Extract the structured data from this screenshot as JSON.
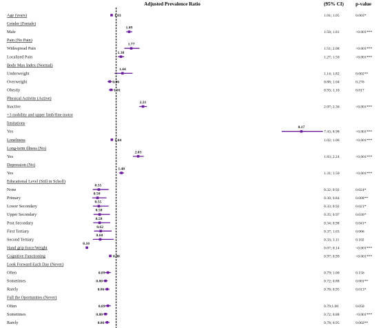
{
  "chart_data": {
    "type": "forest",
    "title": "Adjusted Prevalence Ratio",
    "ci_header": "(95% CI)",
    "p_header": "p-value",
    "x_ticks": [
      "0.15",
      "1.20",
      "2.25",
      "3.30",
      "4.35",
      "5.40",
      "6.45",
      "7.50",
      "8.55"
    ],
    "xlim": [
      0.15,
      8.55
    ],
    "reference_line": 1.2,
    "marker_color": "#6a1b9a",
    "rows": [
      {
        "label": "Age (years)",
        "header": true,
        "pr": 1.03,
        "pr_label": "1.03",
        "lo": 1.01,
        "hi": 1.05,
        "ci": "1.01; 1.05",
        "p": "0.003*"
      },
      {
        "label": "Gender (Female)",
        "header": true
      },
      {
        "label": "Male",
        "pr": 1.69,
        "pr_label": "1.69",
        "lo": 1.58,
        "hi": 1.81,
        "ci": "1.58; 1.81",
        "p": "<0.001***"
      },
      {
        "label": "Pain (No Pain)",
        "header": true
      },
      {
        "label": "Widespread Pain",
        "pr": 1.77,
        "pr_label": "1.77",
        "lo": 1.51,
        "hi": 2.08,
        "ci": "1.51; 2.08",
        "p": "<0.001***"
      },
      {
        "label": "Localized Pain",
        "pr": 1.38,
        "pr_label": "1.38",
        "lo": 1.27,
        "hi": 1.5,
        "ci": "1.27; 1.50",
        "p": "<0.001***"
      },
      {
        "label": "Body Max Index (Normal)",
        "header": true
      },
      {
        "label": "Underweight",
        "pr": 1.44,
        "pr_label": "1.44",
        "lo": 1.14,
        "hi": 1.82,
        "ci": "1.14; 1.82",
        "p": "0.002**"
      },
      {
        "label": "Overweight",
        "pr": 0.96,
        "pr_label": "0.96",
        "lo": 0.88,
        "hi": 1.04,
        "ci": "0.88; 1.04",
        "p": "0.276"
      },
      {
        "label": "Obesity",
        "pr": 1.01,
        "pr_label": "1.01",
        "lo": 0.93,
        "hi": 1.1,
        "ci": "0.93; 1.10",
        "p": "0.817"
      },
      {
        "label": "Physical Activity (Active)",
        "header": true
      },
      {
        "label": "Inactive",
        "pr": 2.21,
        "pr_label": "2.21",
        "lo": 2.07,
        "hi": 2.36,
        "ci": "2.07; 2.36",
        "p": "<0.001***"
      },
      {
        "label": "+3 mobility and upper limb/fine motor",
        "header": true
      },
      {
        "label": "limitations",
        "header": true
      },
      {
        "label": "Yes",
        "pr": 8.17,
        "pr_label": "8.17",
        "lo": 7.43,
        "hi": 8.98,
        "ci": "7.43; 8.98",
        "p": "<0.001***"
      },
      {
        "label": "Loneliness",
        "header": true,
        "pr": 1.04,
        "pr_label": "1.04",
        "lo": 1.02,
        "hi": 1.06,
        "ci": "1.02; 1.06",
        "p": "<0.001***"
      },
      {
        "label": "Long-term illness (No)",
        "header": true
      },
      {
        "label": "Yes",
        "pr": 2.03,
        "pr_label": "2.03",
        "lo": 1.83,
        "hi": 2.24,
        "ci": "1.83; 2.24",
        "p": "<0.001***"
      },
      {
        "label": "Depression (No)",
        "header": true
      },
      {
        "label": "Yes",
        "pr": 1.4,
        "pr_label": "1.40",
        "lo": 1.31,
        "hi": 1.5,
        "ci": "1.31; 1.50",
        "p": "<0.001***"
      },
      {
        "label": "Educational Level (Still in Scholl)",
        "header": true
      },
      {
        "label": "None",
        "pr": 0.55,
        "pr_label": "0.55",
        "lo": 0.32,
        "hi": 0.92,
        "ci": "0.32; 0.92",
        "p": "0.024*"
      },
      {
        "label": "Primary",
        "pr": 0.5,
        "pr_label": "0.50",
        "lo": 0.3,
        "hi": 0.84,
        "ci": "0.30; 0.84",
        "p": "0.008**"
      },
      {
        "label": "Lower Secondary",
        "pr": 0.55,
        "pr_label": "0.55",
        "lo": 0.33,
        "hi": 0.92,
        "ci": "0.33; 0.92",
        "p": "0.021*"
      },
      {
        "label": "Upper Secondary",
        "pr": 0.58,
        "pr_label": "0.58",
        "lo": 0.35,
        "hi": 0.97,
        "ci": "0.35; 0.97",
        "p": "0.036*"
      },
      {
        "label": "Post Secondary",
        "pr": 0.58,
        "pr_label": "0.58",
        "lo": 0.34,
        "hi": 0.98,
        "ci": "0.34; 0.98",
        "p": "0.041*"
      },
      {
        "label": "First Tertiary",
        "pr": 0.62,
        "pr_label": "0.62",
        "lo": 0.37,
        "hi": 1.03,
        "ci": "0.37; 1.03",
        "p": "0.066"
      },
      {
        "label": "Second Tertiary",
        "pr": 0.6,
        "pr_label": "0.60",
        "lo": 0.33,
        "hi": 1.11,
        "ci": "0.33; 1.11",
        "p": "0.102"
      },
      {
        "label": "Hand grip force/Weight",
        "header": true,
        "pr": 0.1,
        "pr_label": "0.10",
        "lo": 0.07,
        "hi": 0.14,
        "ci": "0.07; 0.14",
        "p": "<0.001***"
      },
      {
        "label": "Cognitive Functioning",
        "header": true,
        "pr": 0.98,
        "pr_label": "0.98",
        "lo": 0.97,
        "hi": 0.99,
        "ci": "0.97; 0.99",
        "p": "<0.001***"
      },
      {
        "label": "Look Forward Each Day (Never)",
        "header": true
      },
      {
        "label": "Often",
        "pr": 0.89,
        "pr_label": "0.89",
        "lo": 0.79,
        "hi": 1.0,
        "ci": "0.79; 1.00",
        "p": "0.156"
      },
      {
        "label": "Sometimes",
        "pr": 0.8,
        "pr_label": "0.80",
        "lo": 0.72,
        "hi": 0.88,
        "ci": "0.72; 0.88",
        "p": "0.001**"
      },
      {
        "label": "Rarely",
        "pr": 0.86,
        "pr_label": "0.86",
        "lo": 0.78,
        "hi": 0.95,
        "ci": "0.78; 0.95",
        "p": "0.013*"
      },
      {
        "label": "Full the Oportunities (Never)",
        "header": true
      },
      {
        "label": "Often",
        "pr": 0.89,
        "pr_label": "0.89",
        "lo": 0.79,
        "hi": 1.0,
        "ci": "0.79;1.00",
        "p": "0.050"
      },
      {
        "label": "Sometimes",
        "pr": 0.8,
        "pr_label": "0.80",
        "lo": 0.72,
        "hi": 0.88,
        "ci": "0.72; 0.88",
        "p": "<0.001***"
      },
      {
        "label": "Rarely",
        "pr": 0.86,
        "pr_label": "0.86",
        "lo": 0.78,
        "hi": 0.95,
        "ci": "0.78; 0.95",
        "p": "0.002**"
      }
    ]
  }
}
